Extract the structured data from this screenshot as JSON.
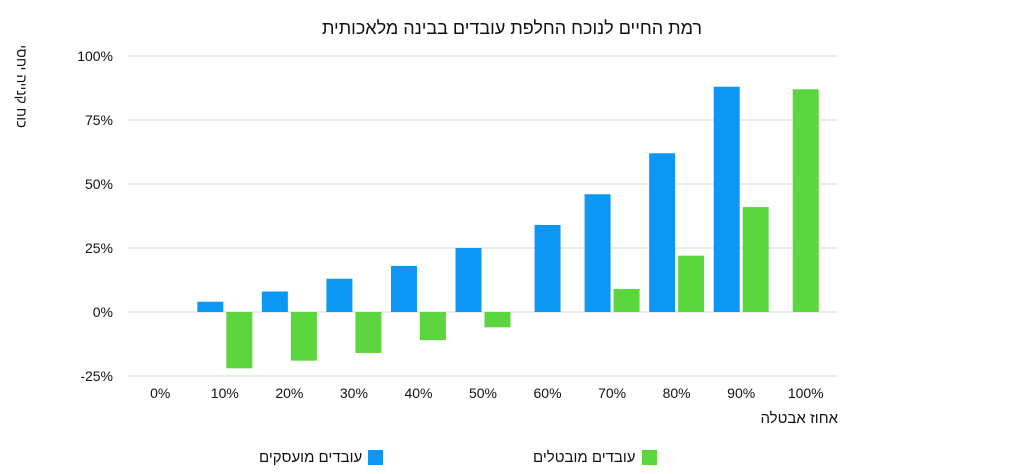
{
  "chart_data": {
    "type": "bar",
    "title": "רמת החיים לנוכח החלפת עובדים בבינה מלאכותית",
    "ylabel": "כוח קנייה יחסי",
    "xlabel": "אחוז אבטלה",
    "categories": [
      "0%",
      "10%",
      "20%",
      "30%",
      "40%",
      "50%",
      "60%",
      "70%",
      "80%",
      "90%",
      "100%"
    ],
    "y_ticks": [
      "100%",
      "75%",
      "50%",
      "25%",
      "0%",
      "-25%"
    ],
    "ylim": [
      -25,
      100
    ],
    "y_tick_values": [
      100,
      75,
      50,
      25,
      0,
      -25
    ],
    "grid": true,
    "legend_position": "bottom",
    "series": [
      {
        "name": "עובדים מועסקים",
        "color": "#0b97f3",
        "values": [
          null,
          4,
          8,
          13,
          18,
          25,
          34,
          46,
          62,
          88,
          null
        ]
      },
      {
        "name": "עובדים מובטלים",
        "color": "#5cd63e",
        "values": [
          null,
          -22,
          -19,
          -16,
          -11,
          -6,
          null,
          9,
          22,
          41,
          87
        ]
      }
    ]
  }
}
